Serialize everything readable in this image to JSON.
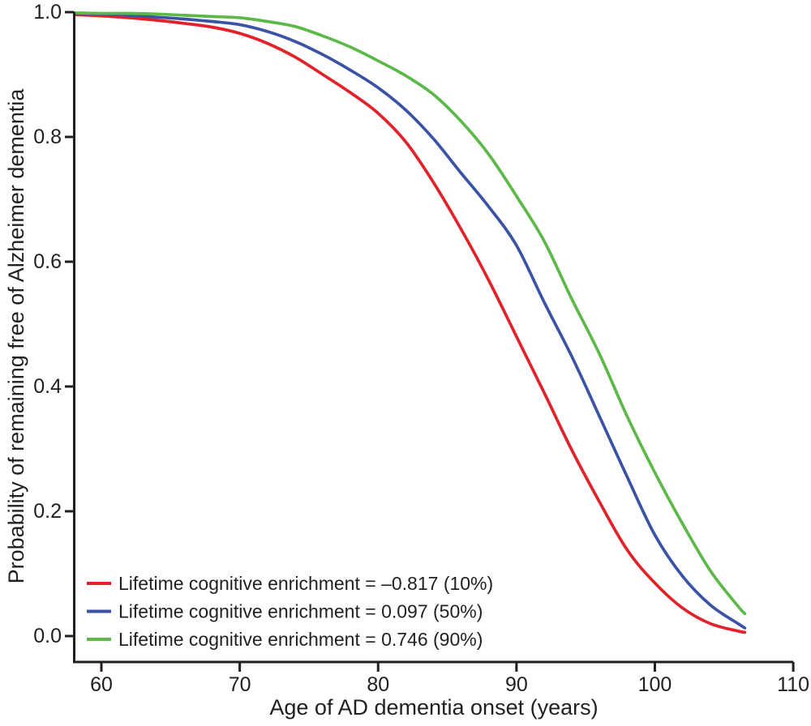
{
  "chart_data": {
    "type": "line",
    "title": "",
    "xlabel": "Age of AD dementia onset (years)",
    "ylabel": "Probability of remaining free of Alzheimer dementia",
    "xlim": [
      58,
      110
    ],
    "ylim": [
      0.0,
      1.0
    ],
    "grid": false,
    "legend_position": "inside-bottom-left",
    "axis_color": "#231f20",
    "x_ticks": {
      "values": [
        60,
        70,
        80,
        90,
        100,
        110
      ],
      "labels": [
        "60",
        "70",
        "80",
        "90",
        "100",
        "110"
      ]
    },
    "y_ticks": {
      "values": [
        0.0,
        0.2,
        0.4,
        0.6,
        0.8,
        1.0
      ],
      "labels": [
        "0.0",
        "0.2",
        "0.4",
        "0.6",
        "0.8",
        "1.0"
      ]
    },
    "x": [
      58.1,
      60,
      62,
      64,
      66,
      68,
      70,
      72,
      74,
      76,
      78,
      80,
      82,
      84,
      86,
      88,
      90,
      92,
      94,
      96,
      98,
      100,
      102,
      104,
      106,
      106.5
    ],
    "series": [
      {
        "name": "Lifetime cognitive enrichment = –0.817 (10%)",
        "enrichment": -0.817,
        "percentile": "10%",
        "color": "#e2222a",
        "values": [
          0.996,
          0.994,
          0.991,
          0.987,
          0.982,
          0.976,
          0.966,
          0.95,
          0.928,
          0.9,
          0.871,
          0.838,
          0.792,
          0.727,
          0.652,
          0.57,
          0.48,
          0.39,
          0.298,
          0.215,
          0.138,
          0.085,
          0.045,
          0.02,
          0.008,
          0.006
        ]
      },
      {
        "name": "Lifetime cognitive enrichment = 0.097 (50%)",
        "enrichment": 0.097,
        "percentile": "50%",
        "color": "#3a53a4",
        "values": [
          0.998,
          0.997,
          0.995,
          0.992,
          0.989,
          0.985,
          0.98,
          0.969,
          0.953,
          0.932,
          0.907,
          0.879,
          0.843,
          0.797,
          0.742,
          0.688,
          0.626,
          0.535,
          0.448,
          0.352,
          0.255,
          0.162,
          0.096,
          0.05,
          0.02,
          0.013
        ]
      },
      {
        "name": "Lifetime cognitive enrichment = 0.746 (90%)",
        "enrichment": 0.746,
        "percentile": "90%",
        "color": "#5cb848",
        "values": [
          0.999,
          0.998,
          0.998,
          0.997,
          0.995,
          0.993,
          0.991,
          0.985,
          0.977,
          0.962,
          0.944,
          0.922,
          0.898,
          0.868,
          0.825,
          0.772,
          0.705,
          0.633,
          0.54,
          0.452,
          0.352,
          0.262,
          0.18,
          0.105,
          0.048,
          0.036
        ]
      }
    ]
  }
}
